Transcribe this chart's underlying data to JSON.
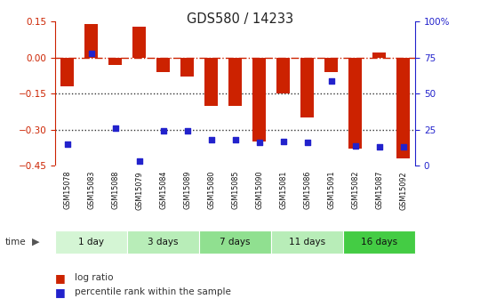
{
  "title": "GDS580 / 14233",
  "samples": [
    "GSM15078",
    "GSM15083",
    "GSM15088",
    "GSM15079",
    "GSM15084",
    "GSM15089",
    "GSM15080",
    "GSM15085",
    "GSM15090",
    "GSM15081",
    "GSM15086",
    "GSM15091",
    "GSM15082",
    "GSM15087",
    "GSM15092"
  ],
  "log_ratio": [
    -0.12,
    0.14,
    -0.03,
    0.13,
    -0.06,
    -0.08,
    -0.2,
    -0.2,
    -0.35,
    -0.15,
    -0.25,
    -0.06,
    -0.38,
    0.02,
    -0.42
  ],
  "percentile": [
    15,
    78,
    26,
    3,
    24,
    24,
    18,
    18,
    16,
    17,
    16,
    59,
    14,
    13,
    13
  ],
  "log_ratio_ylim": [
    -0.45,
    0.15
  ],
  "log_ratio_yticks": [
    0.15,
    0.0,
    -0.15,
    -0.3,
    -0.45
  ],
  "right_yticks": [
    100,
    75,
    50,
    25,
    0
  ],
  "groups": [
    {
      "label": "1 day",
      "start": 0,
      "end": 3,
      "color": "#d4f5d4"
    },
    {
      "label": "3 days",
      "start": 3,
      "end": 6,
      "color": "#b8edb8"
    },
    {
      "label": "7 days",
      "start": 6,
      "end": 9,
      "color": "#90e090"
    },
    {
      "label": "11 days",
      "start": 9,
      "end": 12,
      "color": "#b8edb8"
    },
    {
      "label": "16 days",
      "start": 12,
      "end": 15,
      "color": "#44cc44"
    }
  ],
  "bar_color": "#cc2200",
  "dot_color": "#2222cc",
  "hline_color": "#cc2200",
  "dotted_line_color": "#333333",
  "ylabel_left_color": "#cc2200",
  "ylabel_right_color": "#2222cc",
  "bar_width": 0.55,
  "legend_items": [
    "log ratio",
    "percentile rank within the sample"
  ],
  "background_color": "#ffffff",
  "label_bg_color": "#cccccc"
}
